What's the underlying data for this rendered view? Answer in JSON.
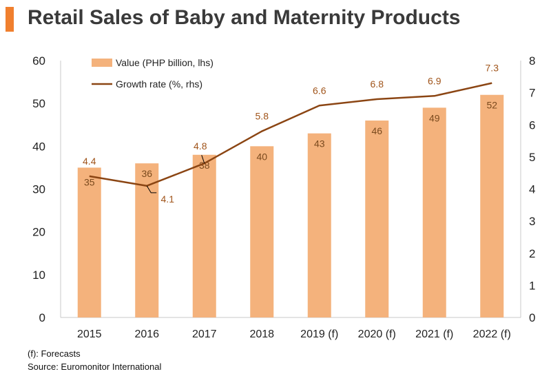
{
  "title": "Retail Sales of Baby and Maternity Products",
  "colors": {
    "accent": "#f07f2e",
    "bar": "#f4b27c",
    "line": "#8b4513",
    "title_text": "#3a3a3a",
    "bar_label": "#7a4a1e",
    "line_label": "#a0541a"
  },
  "chart_data": {
    "type": "bar",
    "categories": [
      "2015",
      "2016",
      "2017",
      "2018",
      "2019 (f)",
      "2020 (f)",
      "2021 (f)",
      "2022 (f)"
    ],
    "series": [
      {
        "name": "Value (PHP billion, lhs)",
        "type": "bar",
        "axis": "left",
        "values": [
          35,
          36,
          38,
          40,
          43,
          46,
          49,
          52
        ]
      },
      {
        "name": "Growth rate (%, rhs)",
        "type": "line",
        "axis": "right",
        "values": [
          4.4,
          4.1,
          4.8,
          5.8,
          6.6,
          6.8,
          6.9,
          7.3
        ]
      }
    ],
    "bar_labels": [
      "35",
      "36",
      "38",
      "40",
      "43",
      "46",
      "49",
      "52"
    ],
    "line_labels": [
      "4.4",
      "4.1",
      "4.8",
      "5.8",
      "6.6",
      "6.8",
      "6.9",
      "7.3"
    ],
    "y_left": {
      "lim": [
        0,
        60
      ],
      "ticks": [
        "0",
        "10",
        "20",
        "30",
        "40",
        "50",
        "60"
      ]
    },
    "y_right": {
      "lim": [
        0,
        8
      ],
      "ticks": [
        "0",
        "1",
        "2",
        "3",
        "4",
        "5",
        "6",
        "7",
        "8"
      ]
    },
    "legend_position": "top-left",
    "grid": false
  },
  "footnotes": {
    "forecast": "(f): Forecasts",
    "source": "Source: Euromonitor International"
  }
}
